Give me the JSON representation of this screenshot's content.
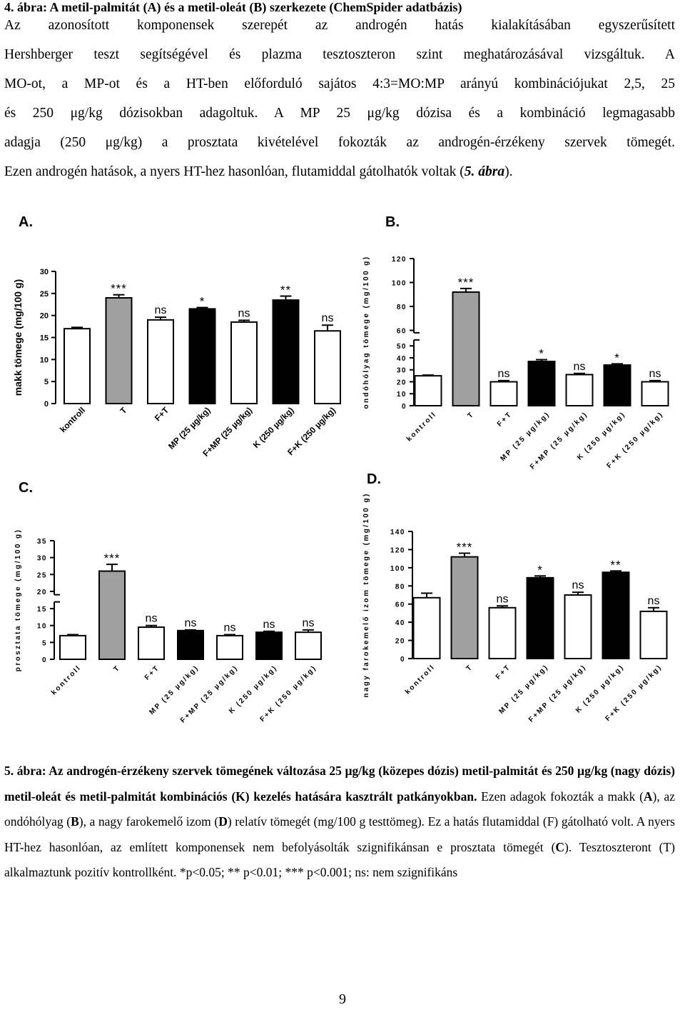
{
  "prev_caption": "4. ábra: A metil-palmitát (A) és a metil-oleát (B) szerkezete (ChemSpider adatbázis)",
  "intro_lines": [
    "Az azonosított komponensek szerepét az androgén hatás kialakításában egyszerűsített",
    "Hershberger teszt segítségével és plazma tesztoszteron szint meghatározásával vizsgáltuk. A",
    "MO-ot, a MP-ot és a HT-ben előforduló sajátos 4:3=MO:MP arányú kombinációjukat 2,5, 25",
    "és 250 μg/kg dózisokban adagoltuk. A MP 25 μg/kg dózisa és a kombináció legmagasabb",
    "adagja (250 μg/kg) a prosztata kivételével fokozták az androgén-érzékeny szervek tömegét.",
    "Ezen androgén hatások, a nyers HT-hez hasonlóan, flutamiddal gátolhatók voltak (",
    "5. ábra",
    ")."
  ],
  "panel_labels": [
    "A.",
    "B.",
    "C.",
    "D."
  ],
  "chart_data": [
    {
      "panel": "A.",
      "type": "bar",
      "ylabel": "makk tömege (mg/100 g)",
      "categories": [
        "kontroll",
        "T",
        "F+T",
        "MP (25 µg/kg)",
        "F+MP (25 µg/kg)",
        "K (250 µg/kg)",
        "F+K (250 µg/kg)"
      ],
      "values": [
        17,
        24,
        19,
        21.5,
        18.5,
        23.5,
        16.5
      ],
      "errors": [
        0.3,
        0.7,
        0.6,
        0.3,
        0.4,
        0.9,
        1.3
      ],
      "fills": [
        "#ffffff",
        "#a0a0a0",
        "#ffffff",
        "#000000",
        "#ffffff",
        "#000000",
        "#ffffff"
      ],
      "significance": [
        "",
        "***",
        "ns",
        "*",
        "ns",
        "**",
        "ns"
      ],
      "yticks": [
        0,
        5,
        10,
        15,
        20,
        25,
        30
      ],
      "ylim": [
        0,
        30
      ]
    },
    {
      "panel": "B.",
      "type": "bar",
      "ylabel": "ondóhólyag tömege (mg/100 g)",
      "categories": [
        "kontroll",
        "T",
        "F+T",
        "MP (25 µg/kg)",
        "F+MP (25 µg/kg)",
        "K (250 µg/kg)",
        "F+K (250 µg/kg)"
      ],
      "values": [
        25,
        92,
        20,
        37,
        26,
        34,
        20
      ],
      "errors": [
        0.6,
        3,
        1,
        1.5,
        1,
        1,
        1
      ],
      "fills": [
        "#ffffff",
        "#a0a0a0",
        "#ffffff",
        "#000000",
        "#ffffff",
        "#000000",
        "#ffffff"
      ],
      "significance": [
        "",
        "***",
        "ns",
        "*",
        "ns",
        "*",
        "ns"
      ],
      "yticks": [
        0,
        10,
        20,
        30,
        40,
        50,
        60,
        80,
        100,
        120
      ],
      "axis_break": [
        55,
        58
      ],
      "ylim": [
        0,
        120
      ]
    },
    {
      "panel": "C.",
      "type": "bar",
      "ylabel": "prosztata tömege (mg/100 g)",
      "categories": [
        "kontroll",
        "T",
        "F+T",
        "MP (25 µg/kg)",
        "F+MP (25 µg/kg)",
        "K (250 µg/kg)",
        "F+K (250 µg/kg)"
      ],
      "values": [
        7,
        26,
        9.5,
        8.5,
        7,
        8,
        8
      ],
      "errors": [
        0.3,
        2,
        0.5,
        0.2,
        0.3,
        0.3,
        0.7
      ],
      "fills": [
        "#ffffff",
        "#a0a0a0",
        "#ffffff",
        "#000000",
        "#ffffff",
        "#000000",
        "#ffffff"
      ],
      "significance": [
        "",
        "***",
        "ns",
        "ns",
        "ns",
        "ns",
        "ns"
      ],
      "yticks": [
        0,
        5,
        10,
        15,
        20,
        25,
        30,
        35
      ],
      "axis_break": [
        17,
        19
      ],
      "ylim": [
        0,
        35
      ]
    },
    {
      "panel": "D.",
      "type": "bar",
      "ylabel": "nagy farokemelő izom tömege (mg/100 g)",
      "categories": [
        "kontroll",
        "T",
        "F+T",
        "MP (25 µg/kg)",
        "F+MP (25 µg/kg)",
        "K (250 µg/kg)",
        "F+K (250 µg/kg)"
      ],
      "values": [
        67,
        112,
        56,
        89,
        70,
        95,
        52
      ],
      "errors": [
        5,
        4,
        2,
        2,
        3,
        1.5,
        4
      ],
      "fills": [
        "#ffffff",
        "#a0a0a0",
        "#ffffff",
        "#000000",
        "#ffffff",
        "#000000",
        "#ffffff"
      ],
      "significance": [
        "",
        "***",
        "ns",
        "*",
        "ns",
        "**",
        "ns"
      ],
      "yticks": [
        0,
        20,
        40,
        60,
        80,
        100,
        120,
        140
      ],
      "ylim": [
        0,
        140
      ]
    }
  ],
  "caption": {
    "bold": "5. ábra: Az androgén-érzékeny szervek tömegének változása 25 µg/kg (közepes dózis) metil-palmitát és 250 µg/kg (nagy dózis) metil-oleát és metil-palmitát kombinációs (K) kezelés hatására kasztrált patkányokban.",
    "t1": " Ezen adagok fokozták a makk (",
    "b1": "A",
    "t2": "), az ondóhólyag (",
    "b2": "B",
    "t3": "), a nagy farokemelő izom (",
    "b3": "D",
    "t4": ") relatív tömegét (mg/100 g testtömeg). Ez a hatás flutamiddal (F) gátolható volt. A nyers HT-hez hasonlóan, az említett komponensek nem befolyásolták szignifikánsan e prosztata tömegét (",
    "b4": "C",
    "t5": "). Tesztoszteront (T) alkalmaztunk pozitív kontrollként. *p<0.05; ** p<0.01; *** p<0.001; ns: nem szignifikáns"
  },
  "page_number": "9"
}
